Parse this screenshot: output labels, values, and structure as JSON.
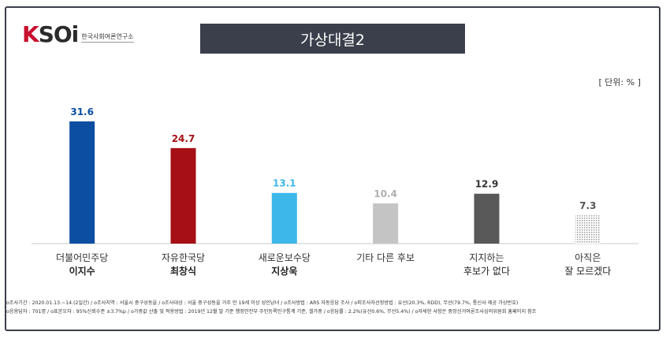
{
  "logo": {
    "main_k": "K",
    "main_rest": "SOi",
    "sub": "한국사회여론연구소"
  },
  "title": "가상대결2",
  "unit": "[ 단위: % ]",
  "chart_data": {
    "type": "bar",
    "categories": [
      {
        "line1": "더불어민주당",
        "line2": "이지수"
      },
      {
        "line1": "자유한국당",
        "line2": "최창식"
      },
      {
        "line1": "새로운보수당",
        "line2": "지상욱"
      },
      {
        "line1": "기타 다른 후보",
        "line2": ""
      },
      {
        "line1": "지지하는",
        "line2": "후보가 없다"
      },
      {
        "line1": "아직은",
        "line2": "잘 모르겠다"
      }
    ],
    "values": [
      31.6,
      24.7,
      13.1,
      10.4,
      12.9,
      7.3
    ],
    "value_labels": [
      "31.6",
      "24.7",
      "13.1",
      "10.4",
      "12.9",
      "7.3"
    ],
    "colors": [
      "#0b4ea2",
      "#a50f15",
      "#3db7ea",
      "#c4c4c4",
      "#595959",
      "#e0e0e0"
    ],
    "label_colors": [
      "#0b4ea2",
      "#a50f15",
      "#3db7ea",
      "#b0b0b0",
      "#333333",
      "#555555"
    ],
    "bold_line2": [
      true,
      true,
      true,
      false,
      false,
      false
    ],
    "last_bar_pattern": "dots",
    "ylim": [
      0,
      35
    ],
    "grid": false
  },
  "footer": {
    "line1": "o조사기간 : 2020.01.13.~14.(2일간) / o조사지역 : 서울시 중구성동을 / o조사대상 : 서울 중구성동을 거주 만 19세 이상 성인남녀 / o조사방법 : ARS 자동응답 조사 / o피조사자선정방법 : 유선(20.3%, RDD), 무선(79.7%, 통신사 제공 가상번호)",
    "line2": "o응용답자 : 701명 / o표본오차 : 95%신뢰수준 ±3.7%p / o가중값 산출 및 적용방법 : 2019년 12월 말 기준 행정안전부 주민등록인구통계 기준, 셀가중 / o응답률 : 2.2%(유선0.6%, 무선5.4%) / o자세한 사항은 중앙선거여론조사심의위원회 홈페이지 참조"
  }
}
